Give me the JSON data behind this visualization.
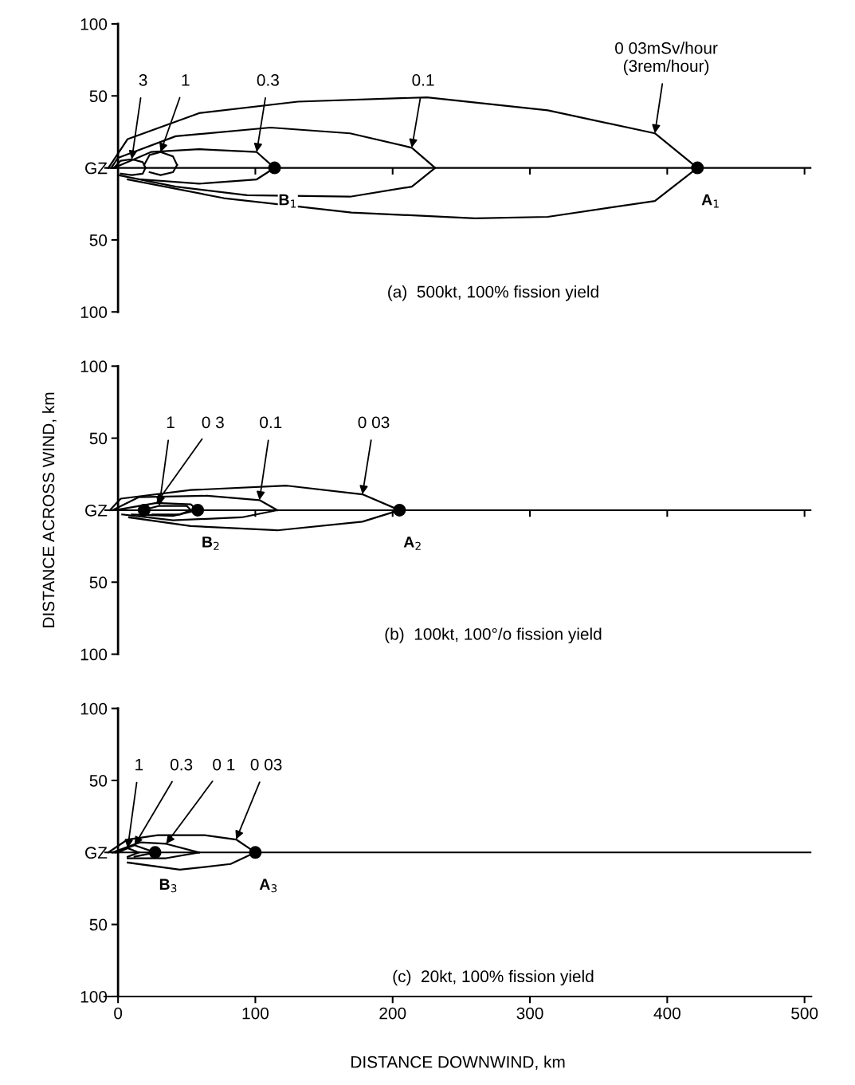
{
  "chart_data": [
    {
      "type": "line",
      "title": "(a)  500kt, 100% fission yield",
      "xlim": [
        -10,
        505
      ],
      "ylim": [
        -100,
        100
      ],
      "xticks": [
        100,
        200,
        300,
        400,
        500
      ],
      "yticks": [
        {
          "value": -100,
          "label": "100"
        },
        {
          "value": -50,
          "label": "50"
        },
        {
          "value": 0,
          "label": "GZ"
        },
        50,
        100
      ],
      "tick_labels": "y",
      "marker": "none",
      "line_style": "solid",
      "ref_lines": [
        {
          "axis": "y",
          "value": 0,
          "label": null
        }
      ],
      "series": [
        {
          "color": "#000000",
          "x": [
            -7,
            7,
            59,
            131,
            225,
            313,
            391,
            422
          ],
          "values": [
            0,
            20,
            38,
            46,
            49,
            40,
            24,
            0
          ]
        },
        {
          "color": "#000000",
          "x": [
            7,
            77,
            170,
            260,
            313,
            391,
            422
          ],
          "values": [
            -8,
            -21,
            -31,
            -35,
            -34,
            -23,
            0
          ]
        },
        {
          "color": "#000000",
          "x": [
            -5,
            0,
            42,
            111,
            169,
            214,
            231
          ],
          "values": [
            0,
            7,
            22,
            28,
            24,
            14,
            0
          ]
        },
        {
          "color": "#000000",
          "x": [
            0,
            42,
            94,
            169,
            214,
            231
          ],
          "values": [
            -5,
            -13,
            -19,
            -20,
            -13,
            0
          ]
        },
        {
          "color": "#000000",
          "x": [
            -3,
            24,
            59,
            101,
            114
          ],
          "values": [
            0,
            11,
            13,
            11,
            0
          ]
        },
        {
          "color": "#000000",
          "x": [
            17,
            59,
            101,
            114
          ],
          "values": [
            -8,
            -11,
            -8,
            0
          ]
        },
        {
          "color": "#000000",
          "x": [
            19,
            23,
            31,
            40,
            43
          ],
          "values": [
            2,
            9,
            11,
            8,
            2
          ]
        },
        {
          "color": "#000000",
          "x": [
            23,
            31,
            40,
            43
          ],
          "values": [
            -3,
            -5,
            -3,
            2
          ]
        },
        {
          "color": "#000000",
          "x": [
            -3,
            2,
            10,
            18,
            20
          ],
          "values": [
            0,
            5,
            6,
            4,
            0
          ]
        },
        {
          "color": "#000000",
          "x": [
            2,
            10,
            18,
            20
          ],
          "values": [
            -4,
            -5,
            -4,
            0
          ]
        },
        {
          "type": "scatter",
          "marker": "circle",
          "color": "#000000",
          "x": [
            114,
            422
          ],
          "values": [
            0,
            0
          ]
        }
      ],
      "annotations": [
        {
          "text": "3",
          "x": 10,
          "y": 6
        },
        {
          "text": "1",
          "x": 31,
          "y": 11
        },
        {
          "text": "0.3",
          "x": 101,
          "y": 11
        },
        {
          "text": "0.1",
          "x": 214,
          "y": 14
        },
        {
          "text": "0 03mSv/hour\n(3rem/hour)",
          "x": 391,
          "y": 24
        },
        {
          "text": "B$_{1}$",
          "x": 114,
          "y": 0
        },
        {
          "text": "A$_{1}$",
          "x": 422,
          "y": 0
        }
      ]
    },
    {
      "type": "line",
      "title": "(b)  100kt, 100°/o fission yield",
      "ylabel": "DISTANCE ACROSS WIND, km",
      "xlim": [
        -10,
        505
      ],
      "ylim": [
        -100,
        100
      ],
      "xticks": [
        100,
        200,
        300,
        400,
        500
      ],
      "yticks": [
        {
          "value": -100,
          "label": "100"
        },
        {
          "value": -50,
          "label": "50"
        },
        {
          "value": 0,
          "label": "GZ"
        },
        50,
        100
      ],
      "tick_labels": "y",
      "marker": "none",
      "line_style": "solid",
      "ref_lines": [
        {
          "axis": "y",
          "value": 0,
          "label": null
        }
      ],
      "series": [
        {
          "color": "#000000",
          "x": [
            -6,
            2,
            53,
            123,
            178,
            205
          ],
          "values": [
            0,
            8,
            14,
            17,
            11,
            0
          ]
        },
        {
          "color": "#000000",
          "x": [
            8,
            53,
            116,
            178,
            205
          ],
          "values": [
            -5,
            -11,
            -14,
            -8,
            0
          ]
        },
        {
          "color": "#000000",
          "x": [
            -4,
            15,
            65,
            103,
            116
          ],
          "values": [
            0,
            9,
            10,
            7,
            0
          ]
        },
        {
          "color": "#000000",
          "x": [
            3,
            40,
            90,
            116
          ],
          "values": [
            -3,
            -7,
            -5,
            0
          ]
        },
        {
          "color": "#000000",
          "x": [
            -2,
            28,
            53,
            58
          ],
          "values": [
            0,
            5,
            4,
            0
          ]
        },
        {
          "color": "#000000",
          "x": [
            10,
            40,
            58
          ],
          "values": [
            -3,
            -4,
            0
          ]
        },
        {
          "color": "#000000",
          "x": [
            18,
            30,
            50,
            53
          ],
          "values": [
            0,
            3,
            3,
            0
          ]
        },
        {
          "color": "#000000",
          "x": [
            25,
            45,
            53
          ],
          "values": [
            -3,
            -3,
            0
          ]
        },
        {
          "type": "scatter",
          "marker": "circle",
          "color": "#000000",
          "x": [
            19,
            58,
            205
          ],
          "values": [
            0,
            0,
            0
          ]
        }
      ],
      "annotations": [
        {
          "text": "1",
          "x": 30,
          "y": 3
        },
        {
          "text": "0 3",
          "x": 28,
          "y": 5
        },
        {
          "text": "0.1",
          "x": 103,
          "y": 7
        },
        {
          "text": "0 03",
          "x": 178,
          "y": 11
        },
        {
          "text": "B$_{2}$",
          "x": 58,
          "y": 0
        },
        {
          "text": "A$_{2}$",
          "x": 205,
          "y": 0
        }
      ]
    },
    {
      "type": "line",
      "title": "(c)  20kt, 100% fission yield",
      "xlabel": "DISTANCE DOWNWIND, km",
      "xlim": [
        -10,
        505
      ],
      "ylim": [
        -100,
        100
      ],
      "xticks": [
        0,
        100,
        200,
        300,
        400,
        500
      ],
      "yticks": [
        {
          "value": -100,
          "label": "100"
        },
        {
          "value": -50,
          "label": "50"
        },
        {
          "value": 0,
          "label": "GZ"
        },
        50,
        100
      ],
      "marker": "none",
      "line_style": "solid",
      "ref_lines": [
        {
          "axis": "y",
          "value": 0,
          "label": null
        }
      ],
      "series": [
        {
          "color": "#000000",
          "x": [
            -7,
            7,
            29,
            63,
            86,
            100
          ],
          "values": [
            0,
            9,
            12,
            12,
            9,
            0
          ]
        },
        {
          "color": "#000000",
          "x": [
            7,
            45,
            82,
            100
          ],
          "values": [
            -7,
            -12,
            -8,
            0
          ]
        },
        {
          "color": "#000000",
          "x": [
            -4,
            16,
            35,
            59
          ],
          "values": [
            0,
            7,
            6,
            0
          ]
        },
        {
          "color": "#000000",
          "x": [
            7,
            35,
            59
          ],
          "values": [
            -4,
            -4,
            0
          ]
        },
        {
          "color": "#000000",
          "x": [
            -2,
            12,
            27
          ],
          "values": [
            0,
            5,
            0
          ]
        },
        {
          "color": "#000000",
          "x": [
            12,
            27
          ],
          "values": [
            -3,
            0
          ]
        },
        {
          "color": "#000000",
          "x": [
            0,
            7,
            15
          ],
          "values": [
            0,
            3,
            0
          ]
        },
        {
          "color": "#000000",
          "x": [
            7,
            15
          ],
          "values": [
            -3,
            0
          ]
        },
        {
          "type": "scatter",
          "marker": "circle",
          "color": "#000000",
          "x": [
            27,
            100
          ],
          "values": [
            0,
            0
          ]
        }
      ],
      "annotations": [
        {
          "text": "1",
          "x": 7,
          "y": 3
        },
        {
          "text": "0.3",
          "x": 12,
          "y": 5
        },
        {
          "text": "0 1",
          "x": 35,
          "y": 6
        },
        {
          "text": "0 03",
          "x": 86,
          "y": 9
        },
        {
          "text": "B$_{3}$",
          "x": 27,
          "y": 0
        },
        {
          "text": "A$_{3}$",
          "x": 100,
          "y": 0
        }
      ]
    }
  ]
}
